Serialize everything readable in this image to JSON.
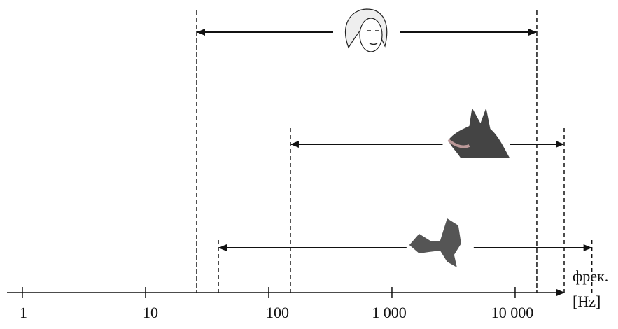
{
  "chart_data": {
    "type": "range",
    "xscale": "log",
    "xlim": [
      0.75,
      25000
    ],
    "xticks": [
      1,
      10,
      100,
      {
        "value": 1000,
        "label": "1 000"
      },
      {
        "value": 10000,
        "label": "10 000"
      }
    ],
    "xlabel": [
      "фрек.",
      "[Hz]"
    ],
    "ranges": [
      {
        "low": 26,
        "high": 15000
      },
      {
        "low": 150,
        "high": 25000
      },
      {
        "low": 39,
        "high": 42000
      }
    ]
  }
}
